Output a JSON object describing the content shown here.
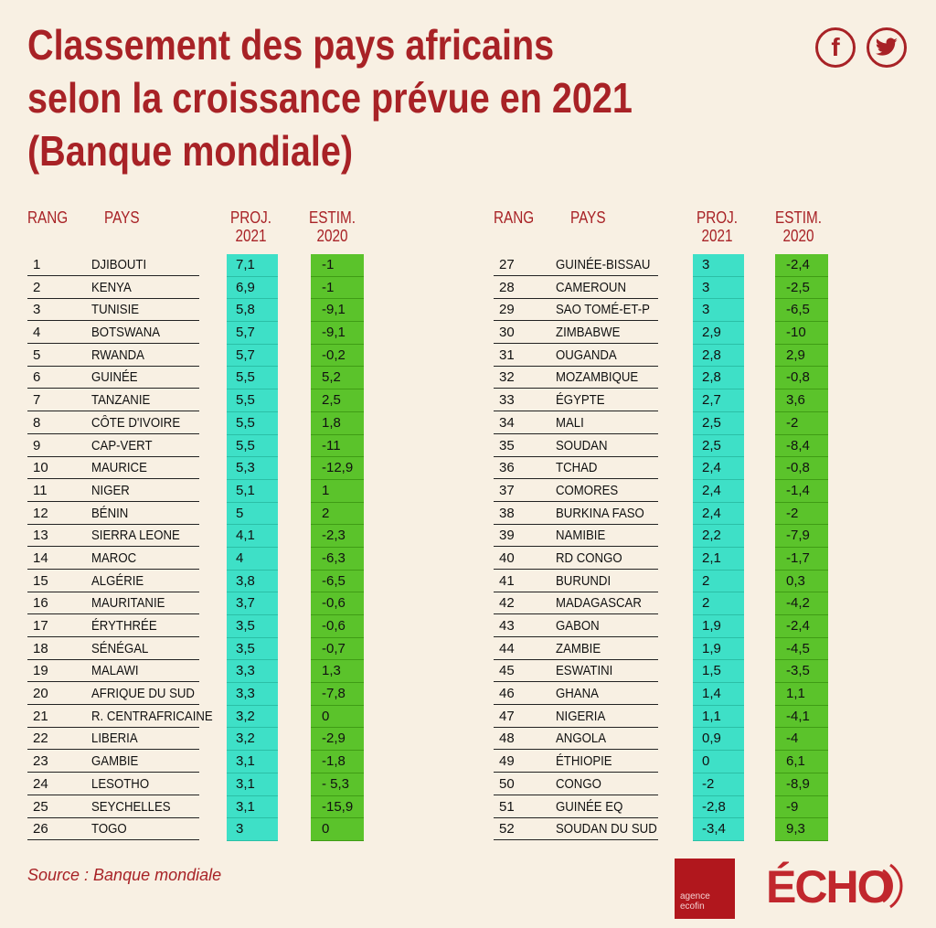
{
  "title": {
    "line1": "Classement des pays africains",
    "line2": "selon la croissance prévue en 2021",
    "line3": "(Banque mondiale)"
  },
  "social": {
    "facebook": "f",
    "twitter": "twitter-bird-icon"
  },
  "headers": {
    "rang": "RANG",
    "pays": "PAYS",
    "proj_line1": "PROJ.",
    "proj_line2": "2021",
    "est_line1": "ESTIM.",
    "est_line2": "2020"
  },
  "left_rows": [
    {
      "rank": "1",
      "country": "DJIBOUTI",
      "proj": "7,1",
      "est": "-1"
    },
    {
      "rank": "2",
      "country": "KENYA",
      "proj": "6,9",
      "est": "-1"
    },
    {
      "rank": "3",
      "country": "TUNISIE",
      "proj": "5,8",
      "est": "-9,1"
    },
    {
      "rank": "4",
      "country": "BOTSWANA",
      "proj": "5,7",
      "est": "-9,1"
    },
    {
      "rank": "5",
      "country": "RWANDA",
      "proj": "5,7",
      "est": "-0,2"
    },
    {
      "rank": "6",
      "country": "GUINÉE",
      "proj": "5,5",
      "est": "5,2"
    },
    {
      "rank": "7",
      "country": "TANZANIE",
      "proj": "5,5",
      "est": "2,5"
    },
    {
      "rank": "8",
      "country": "CÔTE D'IVOIRE",
      "proj": "5,5",
      "est": "1,8"
    },
    {
      "rank": "9",
      "country": "CAP-VERT",
      "proj": "5,5",
      "est": "-11"
    },
    {
      "rank": "10",
      "country": "MAURICE",
      "proj": "5,3",
      "est": "-12,9"
    },
    {
      "rank": "11",
      "country": "NIGER",
      "proj": "5,1",
      "est": "1"
    },
    {
      "rank": "12",
      "country": "BÉNIN",
      "proj": "5",
      "est": "2"
    },
    {
      "rank": "13",
      "country": "SIERRA LEONE",
      "proj": "4,1",
      "est": "-2,3"
    },
    {
      "rank": "14",
      "country": "MAROC",
      "proj": "4",
      "est": "-6,3"
    },
    {
      "rank": "15",
      "country": "ALGÉRIE",
      "proj": "3,8",
      "est": "-6,5"
    },
    {
      "rank": "16",
      "country": "MAURITANIE",
      "proj": "3,7",
      "est": "-0,6"
    },
    {
      "rank": "17",
      "country": "ÉRYTHRÉE",
      "proj": "3,5",
      "est": "-0,6"
    },
    {
      "rank": "18",
      "country": "SÉNÉGAL",
      "proj": "3,5",
      "est": "-0,7"
    },
    {
      "rank": "19",
      "country": "MALAWI",
      "proj": "3,3",
      "est": "1,3"
    },
    {
      "rank": "20",
      "country": "AFRIQUE DU SUD",
      "proj": "3,3",
      "est": "-7,8"
    },
    {
      "rank": "21",
      "country": "R. CENTRAFRICAINE",
      "proj": "3,2",
      "est": "0"
    },
    {
      "rank": "22",
      "country": "LIBERIA",
      "proj": "3,2",
      "est": "-2,9"
    },
    {
      "rank": "23",
      "country": "GAMBIE",
      "proj": "3,1",
      "est": "-1,8"
    },
    {
      "rank": "24",
      "country": "LESOTHO",
      "proj": "3,1",
      "est": "- 5,3"
    },
    {
      "rank": "25",
      "country": "SEYCHELLES",
      "proj": "3,1",
      "est": "-15,9"
    },
    {
      "rank": "26",
      "country": "TOGO",
      "proj": "3",
      "est": "0"
    }
  ],
  "right_rows": [
    {
      "rank": "27",
      "country": "GUINÉE-BISSAU",
      "proj": "3",
      "est": "-2,4"
    },
    {
      "rank": "28",
      "country": "CAMEROUN",
      "proj": "3",
      "est": "-2,5"
    },
    {
      "rank": "29",
      "country": "SAO TOMÉ-ET-P",
      "proj": "3",
      "est": "-6,5"
    },
    {
      "rank": "30",
      "country": "ZIMBABWE",
      "proj": "2,9",
      "est": "-10"
    },
    {
      "rank": "31",
      "country": "OUGANDA",
      "proj": "2,8",
      "est": "2,9"
    },
    {
      "rank": "32",
      "country": "MOZAMBIQUE",
      "proj": "2,8",
      "est": "-0,8"
    },
    {
      "rank": "33",
      "country": "ÉGYPTE",
      "proj": "2,7",
      "est": "3,6"
    },
    {
      "rank": "34",
      "country": "MALI",
      "proj": "2,5",
      "est": "-2"
    },
    {
      "rank": "35",
      "country": "SOUDAN",
      "proj": "2,5",
      "est": "-8,4"
    },
    {
      "rank": "36",
      "country": "TCHAD",
      "proj": "2,4",
      "est": "-0,8"
    },
    {
      "rank": "37",
      "country": "COMORES",
      "proj": "2,4",
      "est": "-1,4"
    },
    {
      "rank": "38",
      "country": "BURKINA FASO",
      "proj": "2,4",
      "est": "-2"
    },
    {
      "rank": "39",
      "country": "NAMIBIE",
      "proj": "2,2",
      "est": "-7,9"
    },
    {
      "rank": "40",
      "country": "RD CONGO",
      "proj": "2,1",
      "est": "-1,7"
    },
    {
      "rank": "41",
      "country": "BURUNDI",
      "proj": "2",
      "est": "0,3"
    },
    {
      "rank": "42",
      "country": "MADAGASCAR",
      "proj": "2",
      "est": "-4,2"
    },
    {
      "rank": "43",
      "country": "GABON",
      "proj": "1,9",
      "est": "-2,4"
    },
    {
      "rank": "44",
      "country": "ZAMBIE",
      "proj": "1,9",
      "est": "-4,5"
    },
    {
      "rank": "45",
      "country": "ESWATINI",
      "proj": "1,5",
      "est": "-3,5"
    },
    {
      "rank": "46",
      "country": "GHANA",
      "proj": "1,4",
      "est": "1,1"
    },
    {
      "rank": "47",
      "country": "NIGERIA",
      "proj": "1,1",
      "est": "-4,1"
    },
    {
      "rank": "48",
      "country": "ANGOLA",
      "proj": "0,9",
      "est": "-4"
    },
    {
      "rank": "49",
      "country": "ÉTHIOPIE",
      "proj": "0",
      "est": "6,1"
    },
    {
      "rank": "50",
      "country": "CONGO",
      "proj": "-2",
      "est": "-8,9"
    },
    {
      "rank": "51",
      "country": "GUINÉE EQ",
      "proj": "-2,8",
      "est": "-9"
    },
    {
      "rank": "52",
      "country": "SOUDAN DU SUD",
      "proj": "-3,4",
      "est": "9,3"
    }
  ],
  "footer": {
    "source": "Source :  Banque mondiale",
    "ecofin_line1": "agence",
    "ecofin_line2": "ecofin",
    "echo_logo": "ÉCHO"
  },
  "colors": {
    "title": "#a82226",
    "proj_cell": "#3ee0c7",
    "est_cell": "#5bc32b",
    "background": "#f8f0e3"
  }
}
